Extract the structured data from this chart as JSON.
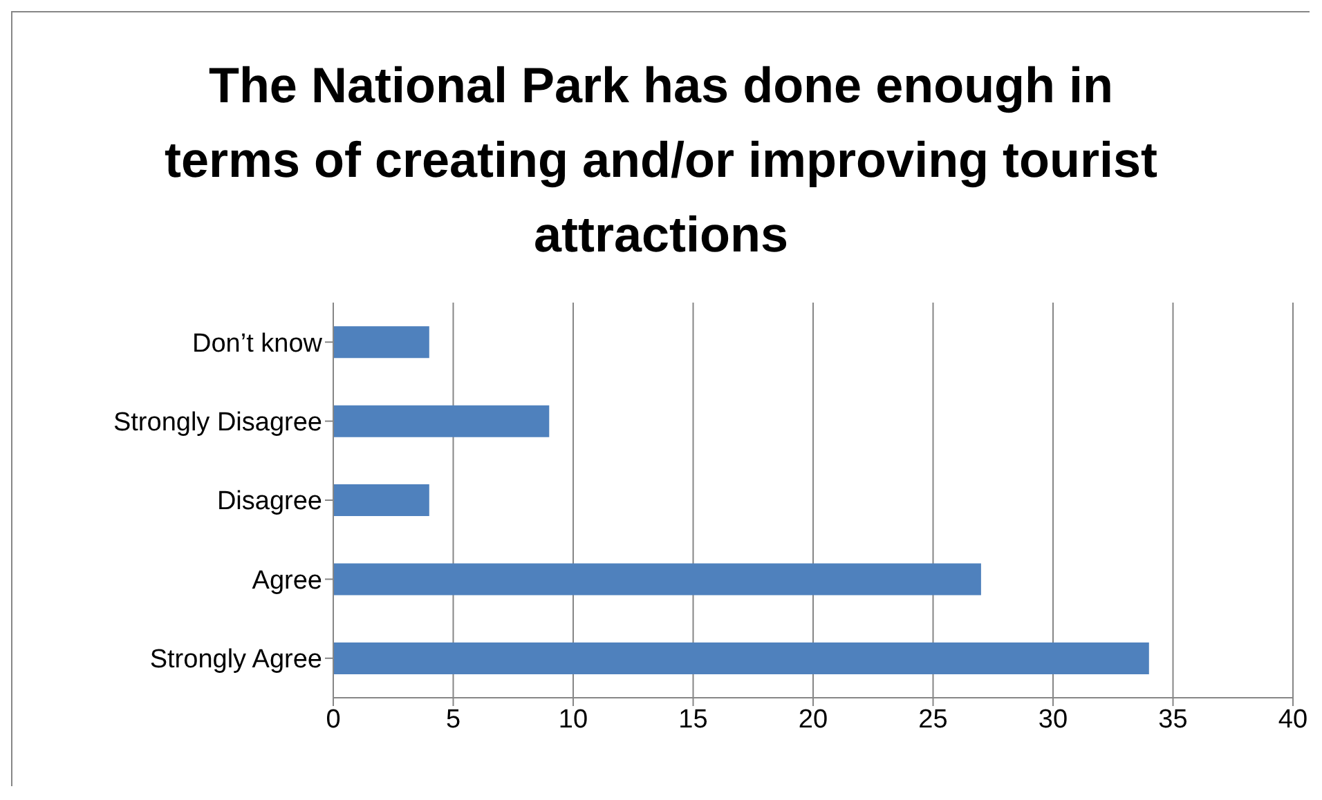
{
  "chart_data": {
    "type": "bar",
    "orientation": "horizontal",
    "title": "The National Park has done enough in terms of creating and/or improving tourist attractions",
    "categories": [
      "Don’t know",
      "Strongly Disagree",
      "Disagree",
      "Agree",
      "Strongly Agree"
    ],
    "values": [
      4,
      9,
      4,
      27,
      34
    ],
    "color": "#4f81bd",
    "xlim": [
      0,
      40
    ],
    "xticks": [
      0,
      5,
      10,
      15,
      20,
      25,
      30,
      35,
      40
    ],
    "grid": "x",
    "legend": false
  }
}
